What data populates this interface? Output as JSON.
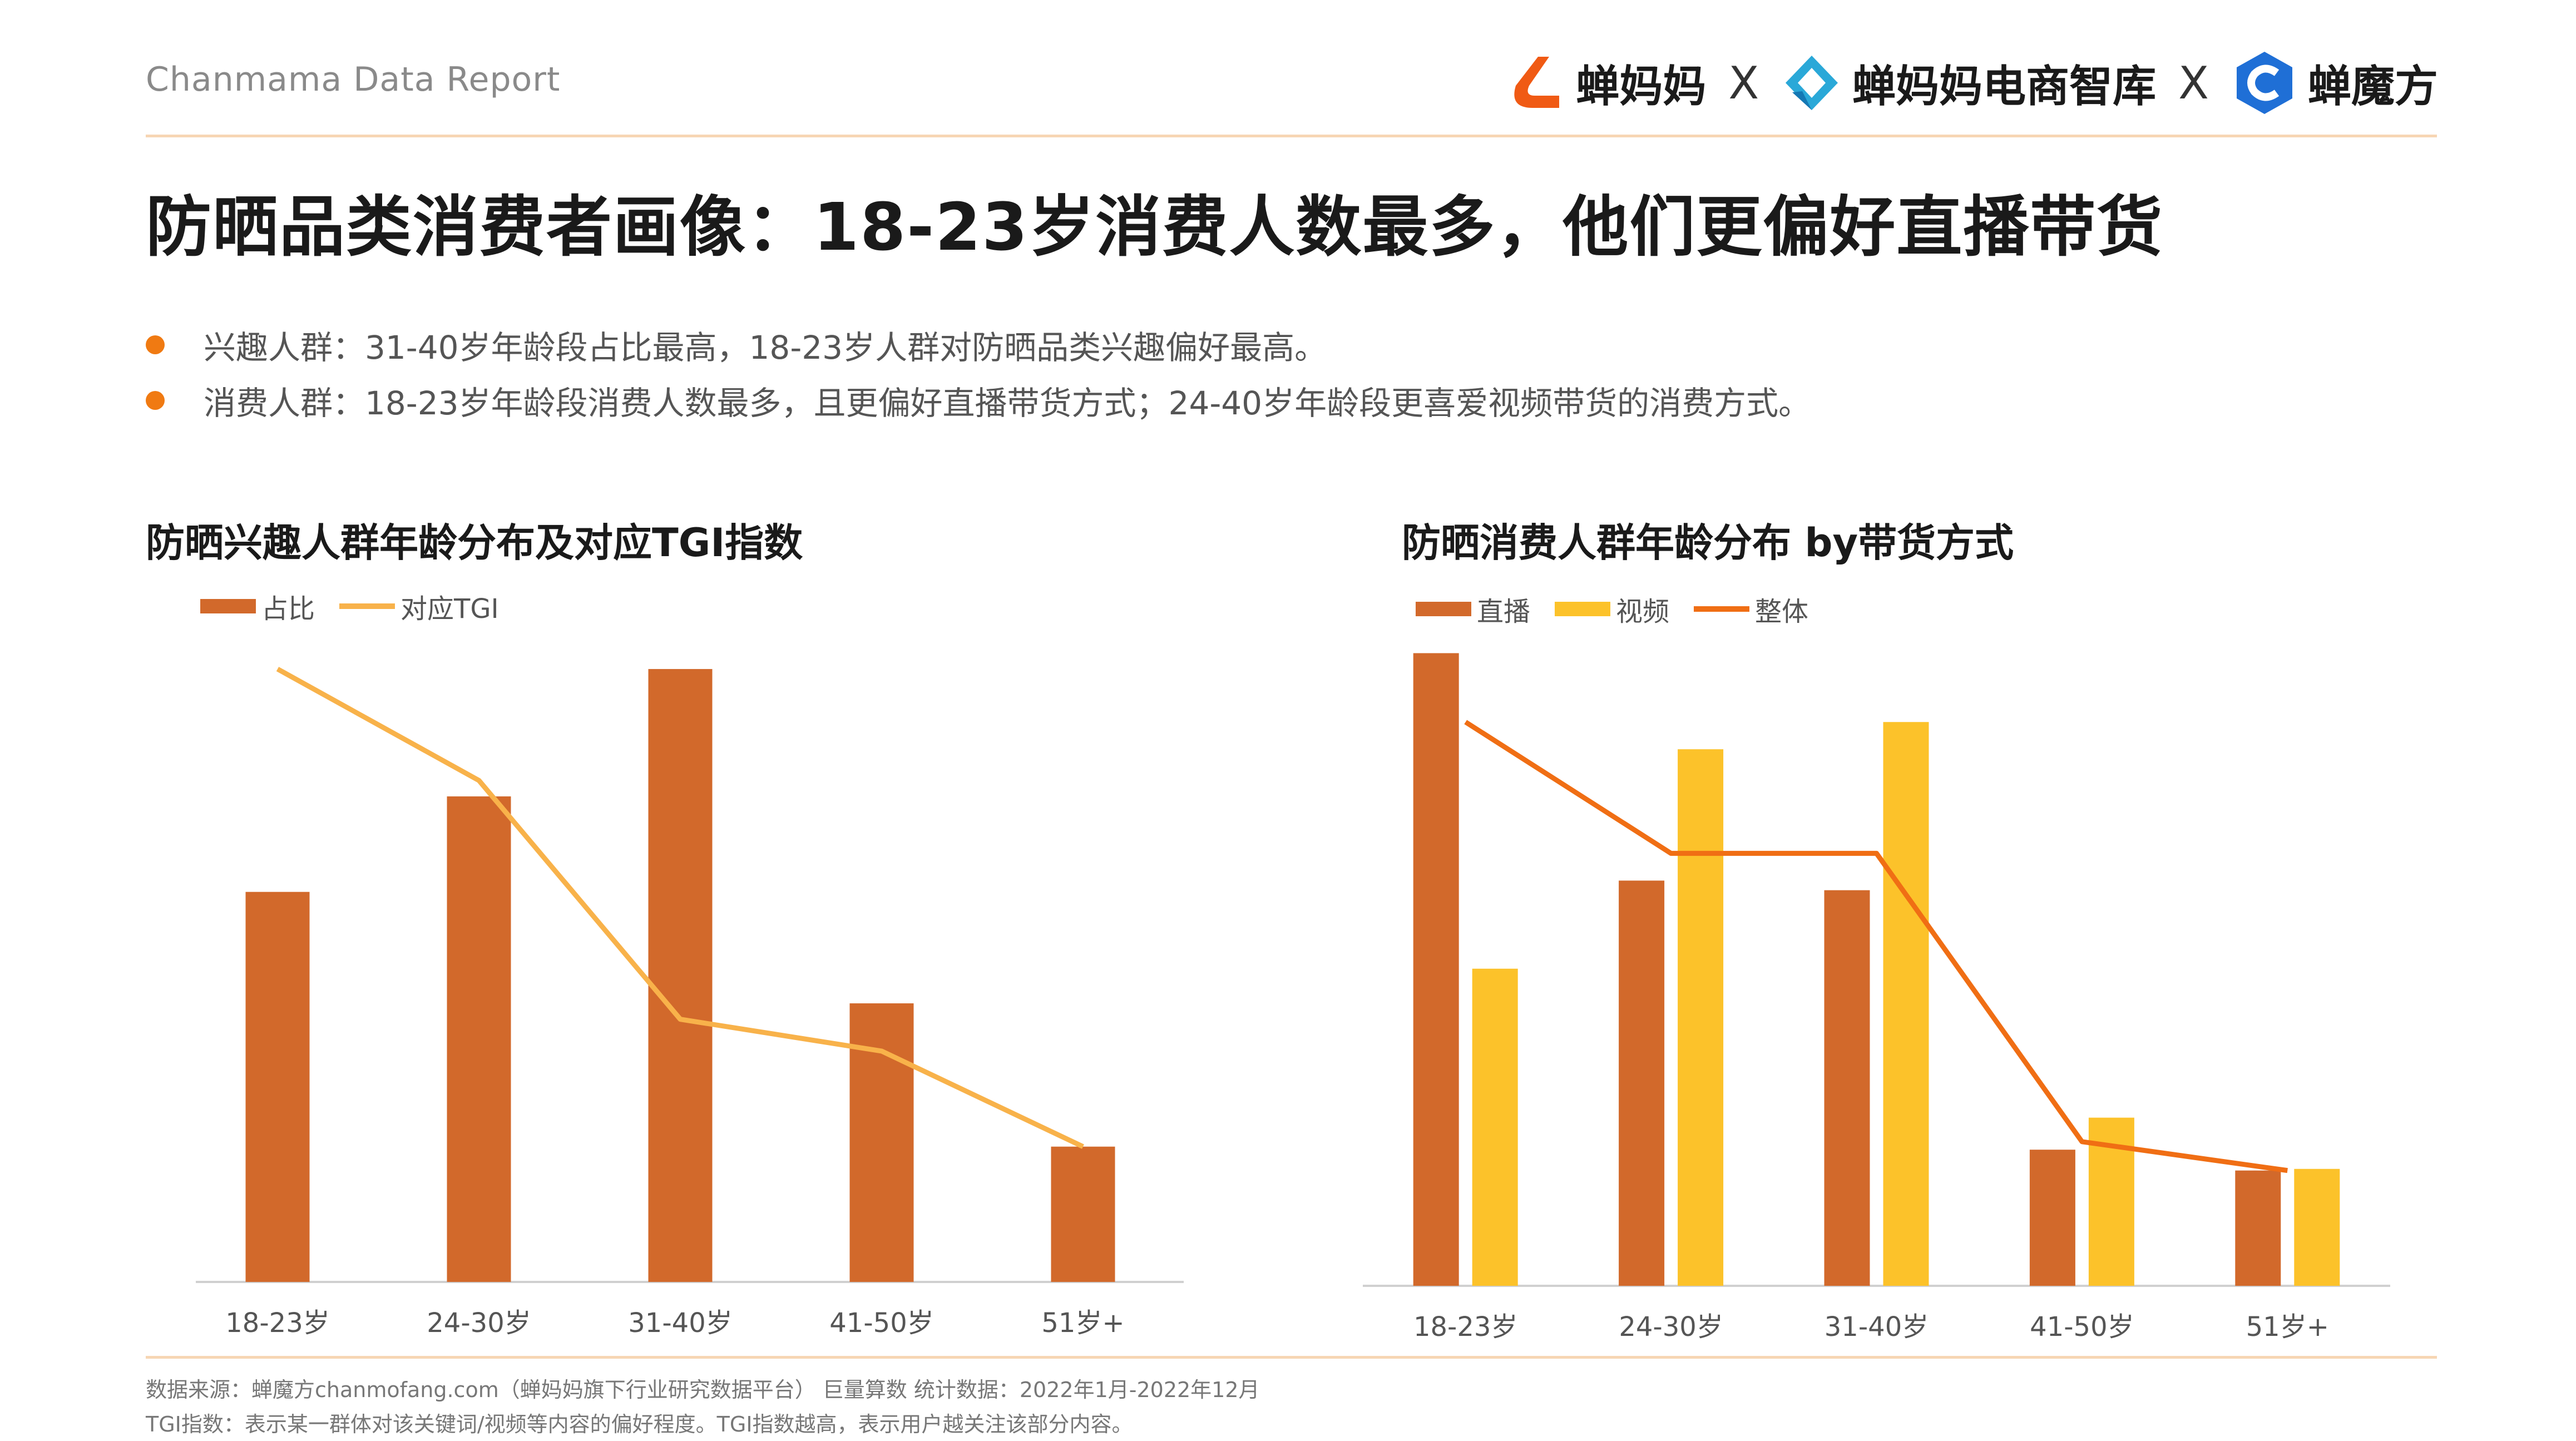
{
  "header": {
    "report_label": "Chanmama Data Report",
    "logos": [
      {
        "icon": "chanmama-logo-icon",
        "text": "蝉妈妈",
        "color": "#f05a14"
      },
      {
        "separator": "X"
      },
      {
        "icon": "chanmama-ecommerce-think-tank-icon",
        "text": "蝉妈妈电商智库",
        "color": "#2aa8d8"
      },
      {
        "separator": "X"
      },
      {
        "icon": "chanmofang-logo-icon",
        "text": "蝉魔方",
        "color": "#1f6fd6"
      }
    ]
  },
  "title": "防晒品类消费者画像：18-23岁消费人数最多，他们更偏好直播带货",
  "bullets": [
    "兴趣人群：31-40岁年龄段占比最高，18-23岁人群对防晒品类兴趣偏好最高。",
    "消费人群：18-23岁年龄段消费人数最多，且更偏好直播带货方式；24-40岁年龄段更喜爱视频带货的消费方式。"
  ],
  "colors": {
    "accent": "#f07a12",
    "bar_dark": "#d2692b",
    "bar_yellow": "#fcc22a",
    "line_light": "#f8b24a",
    "line_orange": "#f06e14",
    "rule": "#f7d6b4"
  },
  "chart_data": [
    {
      "type": "bar",
      "title": "防晒兴趣人群年龄分布及对应TGI指数",
      "categories": [
        "18-23岁",
        "24-30岁",
        "31-40岁",
        "41-50岁",
        "51岁+"
      ],
      "series": [
        {
          "name": "占比",
          "type": "bar",
          "values": [
            24.5,
            30.5,
            38.5,
            17.5,
            8.5
          ]
        },
        {
          "name": "对应TGI",
          "type": "line",
          "values": [
            38.5,
            31.5,
            16.5,
            14.5,
            8.5
          ]
        }
      ],
      "ylim": [
        0,
        40
      ],
      "grid": false,
      "legend": "top-left"
    },
    {
      "type": "bar",
      "title": "防晒消费人群年龄分布 by带货方式",
      "categories": [
        "18-23岁",
        "24-30岁",
        "31-40岁",
        "41-50岁",
        "51岁+"
      ],
      "series": [
        {
          "name": "直播",
          "type": "bar",
          "values": [
            39.5,
            25.3,
            24.7,
            8.5,
            7.2
          ]
        },
        {
          "name": "视频",
          "type": "bar",
          "values": [
            19.8,
            33.5,
            35.2,
            10.5,
            7.3
          ]
        },
        {
          "name": "整体",
          "type": "line",
          "values": [
            35.2,
            27.0,
            27.0,
            9.0,
            7.2
          ]
        }
      ],
      "ylim": [
        0,
        40
      ],
      "grid": false,
      "legend": "top-left"
    }
  ],
  "footer": {
    "source": "数据来源：蝉魔方chanmofang.com（蝉妈妈旗下行业研究数据平台） 巨量算数 统计数据：2022年1月-2022年12月",
    "note": "TGI指数：表示某一群体对该关键词/视频等内容的偏好程度。TGI指数越高，表示用户越关注该部分内容。"
  }
}
